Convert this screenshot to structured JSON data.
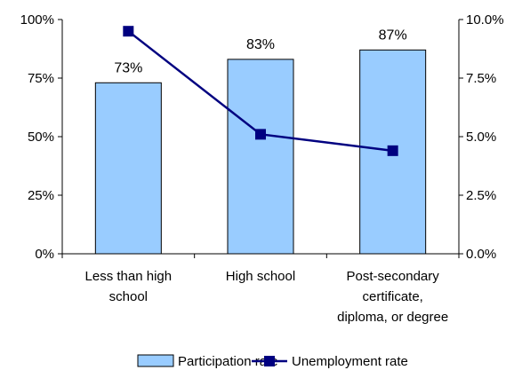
{
  "chart_data": {
    "type": "bar",
    "categories": [
      [
        "Less than high",
        "school"
      ],
      [
        "High school"
      ],
      [
        "Post-secondary",
        "certificate,",
        "diploma, or degree"
      ]
    ],
    "series": [
      {
        "name": "Participation rate",
        "type": "bar",
        "axis": "left",
        "values": [
          73,
          83,
          87
        ],
        "data_labels": [
          "73%",
          "83%",
          "87%"
        ],
        "color": "#99ccff",
        "stroke": "#000000"
      },
      {
        "name": "Unemployment rate",
        "type": "line",
        "axis": "right",
        "values": [
          9.5,
          5.1,
          4.4
        ],
        "color": "#000080"
      }
    ],
    "y_left": {
      "min": 0,
      "max": 100,
      "ticks": [
        0,
        25,
        50,
        75,
        100
      ],
      "tick_labels": [
        "0%",
        "25%",
        "50%",
        "75%",
        "100%"
      ]
    },
    "y_right": {
      "min": 0,
      "max": 10,
      "ticks": [
        0,
        2.5,
        5,
        7.5,
        10
      ],
      "tick_labels": [
        "0.0%",
        "2.5%",
        "5.0%",
        "7.5%",
        "10.0%"
      ]
    },
    "title": "",
    "xlabel": "",
    "ylabel": "",
    "grid": false,
    "legend_position": "bottom"
  }
}
